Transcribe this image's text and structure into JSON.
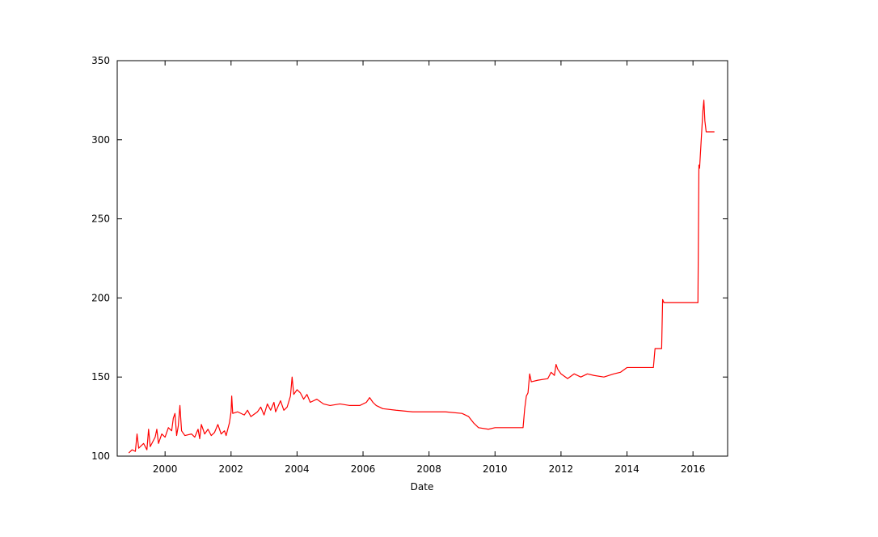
{
  "chart_data": {
    "type": "line",
    "x_label": "Date",
    "x": [
      1998.9,
      1999.0,
      1999.1,
      1999.15,
      1999.2,
      1999.35,
      1999.45,
      1999.5,
      1999.55,
      1999.7,
      1999.75,
      1999.8,
      1999.9,
      2000.0,
      2000.1,
      2000.2,
      2000.25,
      2000.3,
      2000.35,
      2000.4,
      2000.45,
      2000.5,
      2000.6,
      2000.8,
      2000.9,
      2001.0,
      2001.05,
      2001.1,
      2001.2,
      2001.3,
      2001.4,
      2001.5,
      2001.6,
      2001.7,
      2001.8,
      2001.85,
      2001.95,
      2002.0,
      2002.02,
      2002.05,
      2002.2,
      2002.4,
      2002.5,
      2002.6,
      2002.8,
      2002.9,
      2003.0,
      2003.1,
      2003.2,
      2003.3,
      2003.35,
      2003.5,
      2003.6,
      2003.7,
      2003.8,
      2003.85,
      2003.9,
      2004.0,
      2004.1,
      2004.2,
      2004.3,
      2004.4,
      2004.6,
      2004.8,
      2005.0,
      2005.3,
      2005.6,
      2005.9,
      2006.1,
      2006.2,
      2006.3,
      2006.4,
      2006.6,
      2007.0,
      2007.5,
      2008.0,
      2008.5,
      2009.0,
      2009.2,
      2009.35,
      2009.5,
      2009.8,
      2010.0,
      2010.5,
      2010.85,
      2010.9,
      2010.95,
      2011.0,
      2011.05,
      2011.1,
      2011.3,
      2011.6,
      2011.7,
      2011.8,
      2011.85,
      2011.9,
      2012.0,
      2012.2,
      2012.4,
      2012.6,
      2012.8,
      2013.0,
      2013.3,
      2013.6,
      2013.8,
      2014.0,
      2014.1,
      2014.5,
      2014.8,
      2014.85,
      2015.05,
      2015.08,
      2015.12,
      2015.5,
      2016.0,
      2016.15,
      2016.18,
      2016.2,
      2016.3,
      2016.33,
      2016.36,
      2016.4,
      2016.65
    ],
    "series": [
      {
        "color": "#ff0000",
        "values": [
          102,
          104,
          103,
          114,
          105,
          108,
          104,
          117,
          106,
          112,
          117,
          108,
          114,
          112,
          118,
          116,
          124,
          127,
          113,
          119,
          132,
          116,
          113,
          114,
          112,
          117,
          111,
          120,
          114,
          117,
          113,
          115,
          120,
          114,
          116,
          113,
          121,
          128,
          138,
          127,
          128,
          126,
          129,
          125,
          128,
          131,
          126,
          133,
          129,
          134,
          128,
          135,
          129,
          131,
          138,
          150,
          139,
          142,
          140,
          136,
          139,
          134,
          136,
          133,
          132,
          133,
          132,
          132,
          134,
          137,
          134,
          132,
          130,
          129,
          128,
          128,
          128,
          127,
          125,
          121,
          118,
          117,
          118,
          118,
          118,
          130,
          138,
          140,
          152,
          147,
          148,
          149,
          153,
          151,
          158,
          155,
          152,
          149,
          152,
          150,
          152,
          151,
          150,
          152,
          153,
          156,
          156,
          156,
          156,
          168,
          168,
          199,
          197,
          197,
          197,
          197,
          284,
          282,
          318,
          325,
          312,
          305,
          305
        ]
      }
    ],
    "xlim": [
      1998.55,
      2017.05
    ],
    "xticks": [
      2000,
      2002,
      2004,
      2006,
      2008,
      2010,
      2012,
      2014,
      2016
    ],
    "ylim": [
      100,
      350
    ],
    "yticks": [
      100,
      150,
      200,
      250,
      300,
      350
    ]
  }
}
